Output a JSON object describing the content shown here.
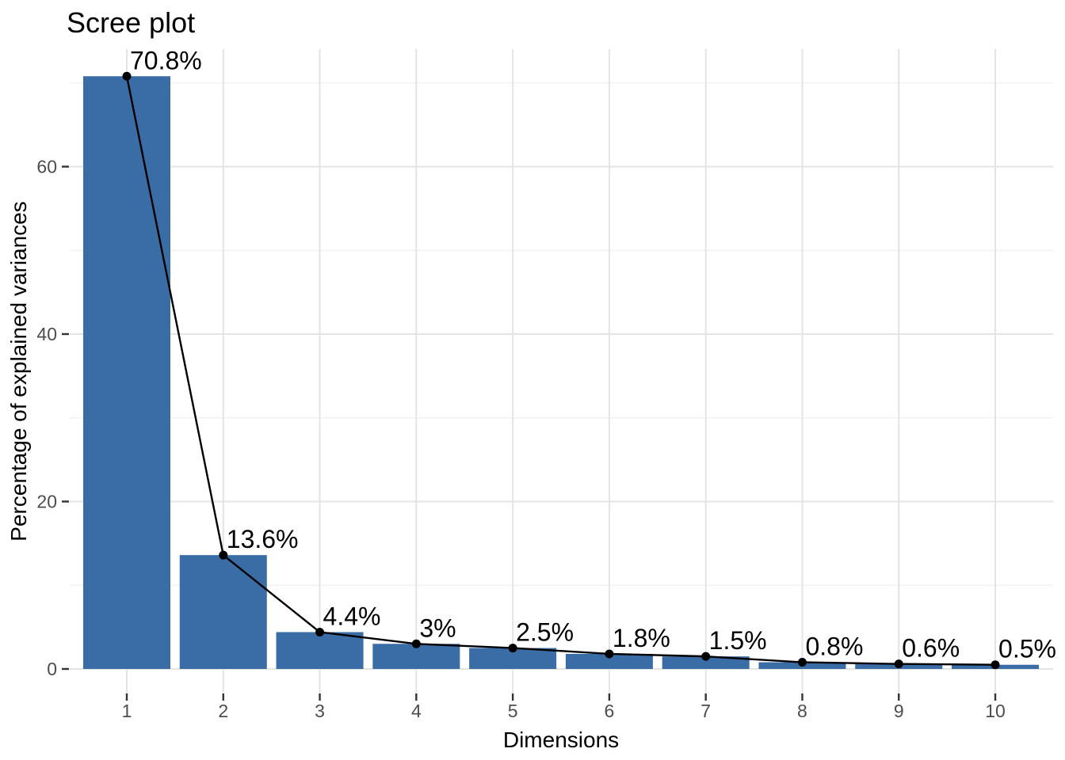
{
  "chart_data": {
    "type": "bar",
    "overlay": "line",
    "title": "Scree plot",
    "xlabel": "Dimensions",
    "ylabel": "Percentage of explained variances",
    "categories": [
      "1",
      "2",
      "3",
      "4",
      "5",
      "6",
      "7",
      "8",
      "9",
      "10"
    ],
    "values": [
      70.8,
      13.6,
      4.4,
      3,
      2.5,
      1.8,
      1.5,
      0.8,
      0.6,
      0.5
    ],
    "point_labels": [
      "70.8%",
      "13.6%",
      "4.4%",
      "3%",
      "2.5%",
      "1.8%",
      "1.5%",
      "0.8%",
      "0.6%",
      "0.5%"
    ],
    "y_ticks": [
      0,
      20,
      40,
      60
    ],
    "y_minor_ticks": [
      10,
      30,
      50,
      70
    ],
    "ylim": [
      0,
      74
    ],
    "grid": true,
    "legend": false,
    "colors": {
      "bar_fill": "#3A6CA6",
      "line": "#000000",
      "point": "#000000",
      "grid_major": "#E4E4E4",
      "grid_minor": "#EFEFEF",
      "axis_tick": "#333333",
      "tick_label": "#4D4D4D",
      "text": "#000000",
      "background": "#FFFFFF"
    }
  }
}
